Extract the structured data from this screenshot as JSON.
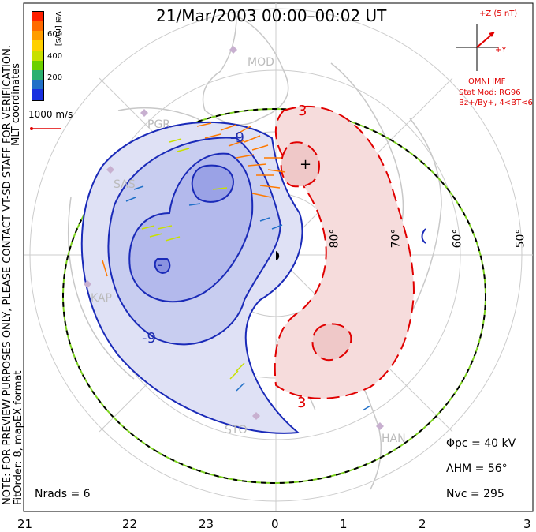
{
  "title": "21/Mar/2003 00:00–00:02 UT",
  "coord_label": "MLT coordinates",
  "note": "NOTE: FOR PREVIEW PURPOSES ONLY, PLEASE CONTACT VT-SD STAFF FOR VERIFICATION.",
  "fit_info": "FitOrder: 8, mapEX format",
  "colorbar": {
    "label": "Vel [m/s]",
    "ticks": [
      "600",
      "400",
      "200"
    ],
    "colors": [
      "#ff2000",
      "#ff6a00",
      "#ff9d00",
      "#ffd000",
      "#c8e000",
      "#6cd000",
      "#2ab070",
      "#2070c8",
      "#1830e0"
    ]
  },
  "vector_scale_label": "1000 m/s",
  "imf": {
    "z_label": "+Z (5 nT)",
    "y_label": "+Y",
    "source": "OMNI IMF",
    "model": "Stat Mod: RG96",
    "condition": "Bz+/By+, 4<BT<6"
  },
  "stats": {
    "phi_pc": "Φpc = 40 kV",
    "lambda_hm": "ΛHM = 56°",
    "n_vc": "Nvc = 295",
    "n_rads": "Nrads = 6"
  },
  "mlt_labels": [
    "21",
    "22",
    "23",
    "0",
    "1",
    "2",
    "3"
  ],
  "lat_labels": [
    "80°",
    "70°",
    "60°",
    "50°"
  ],
  "stations": [
    "MOD",
    "PGR",
    "SAS",
    "KAP",
    "STO",
    "HAN"
  ],
  "contour_labels": [
    "3",
    "3",
    "-9",
    "-9",
    "-"
  ],
  "colors": {
    "positive": "#e00000",
    "negative": "#1a2ab8",
    "pos_fill": "#f6dcdc",
    "neg_fill": "#c8cdf0",
    "hm_boundary": "#7ed321"
  }
}
